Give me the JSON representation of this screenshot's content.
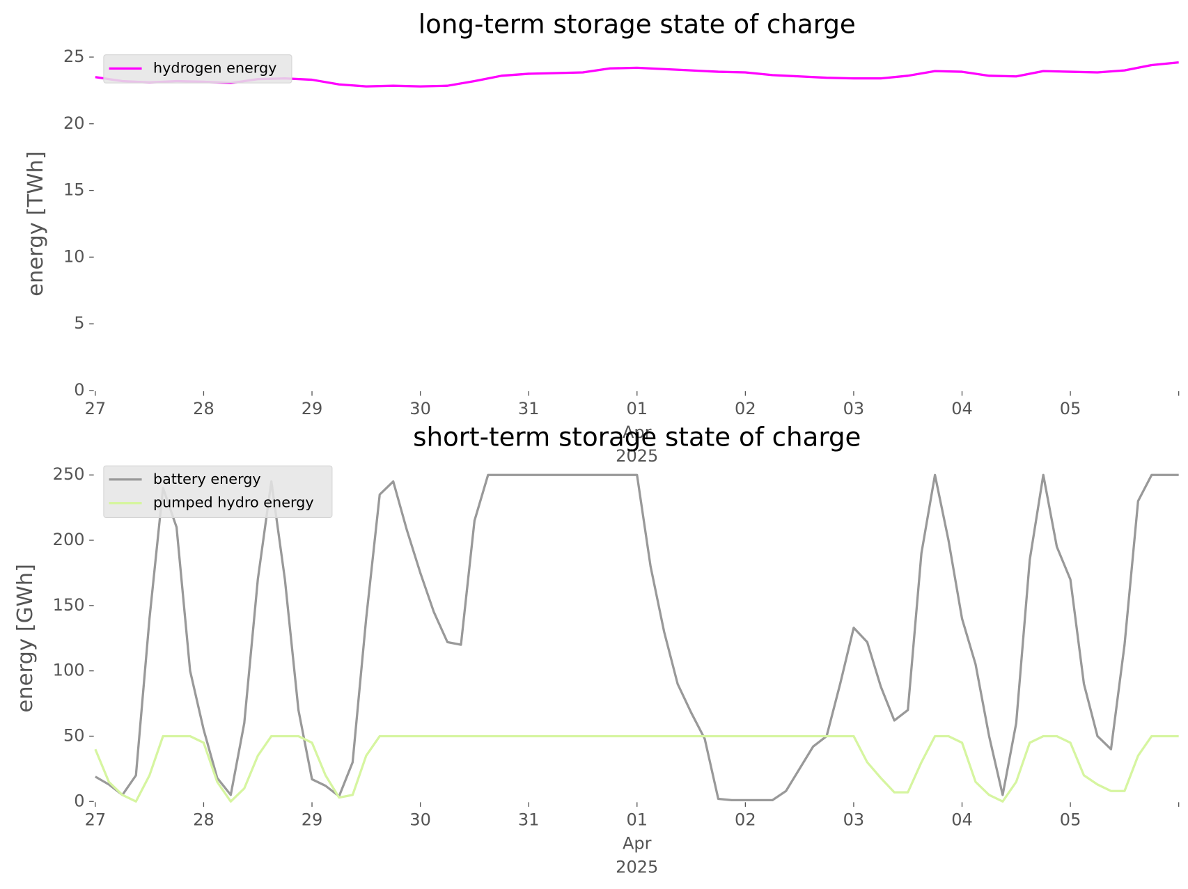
{
  "chart_data": [
    {
      "type": "line",
      "title": "long-term storage state of charge",
      "ylabel": "energy [TWh]",
      "x": [
        "2025-03-27 00:00",
        "2025-03-27 06:00",
        "2025-03-27 12:00",
        "2025-03-27 18:00",
        "2025-03-28 00:00",
        "2025-03-28 06:00",
        "2025-03-28 12:00",
        "2025-03-28 18:00",
        "2025-03-29 00:00",
        "2025-03-29 06:00",
        "2025-03-29 12:00",
        "2025-03-29 18:00",
        "2025-03-30 00:00",
        "2025-03-30 06:00",
        "2025-03-30 12:00",
        "2025-03-30 18:00",
        "2025-03-31 00:00",
        "2025-03-31 06:00",
        "2025-03-31 12:00",
        "2025-03-31 18:00",
        "2025-04-01 00:00",
        "2025-04-01 06:00",
        "2025-04-01 12:00",
        "2025-04-01 18:00",
        "2025-04-02 00:00",
        "2025-04-02 06:00",
        "2025-04-02 12:00",
        "2025-04-02 18:00",
        "2025-04-03 00:00",
        "2025-04-03 06:00",
        "2025-04-03 12:00",
        "2025-04-03 18:00",
        "2025-04-04 00:00",
        "2025-04-04 06:00",
        "2025-04-04 12:00",
        "2025-04-04 18:00",
        "2025-04-05 00:00",
        "2025-04-05 06:00",
        "2025-04-05 12:00",
        "2025-04-05 18:00",
        "2025-04-06 00:00"
      ],
      "series": [
        {
          "name": "hydrogen energy",
          "color": "#ff00ff",
          "values": [
            23.5,
            23.2,
            23.1,
            23.2,
            23.15,
            23.05,
            23.35,
            23.4,
            23.3,
            22.95,
            22.8,
            22.85,
            22.8,
            22.85,
            23.2,
            23.6,
            23.75,
            23.8,
            23.85,
            24.15,
            24.2,
            24.1,
            24.0,
            23.9,
            23.85,
            23.65,
            23.55,
            23.45,
            23.4,
            23.4,
            23.6,
            23.95,
            23.9,
            23.6,
            23.55,
            23.95,
            23.9,
            23.85,
            24.0,
            24.4,
            24.6
          ]
        }
      ],
      "xlim": [
        "2025-03-27 00:00",
        "2025-04-06 00:00"
      ],
      "xticks": [
        {
          "value": "2025-03-27",
          "label": "27"
        },
        {
          "value": "2025-03-28",
          "label": "28"
        },
        {
          "value": "2025-03-29",
          "label": "29"
        },
        {
          "value": "2025-03-30",
          "label": "30"
        },
        {
          "value": "2025-03-31",
          "label": "31"
        },
        {
          "value": "2025-04-01",
          "label": "01\nApr\n2025"
        },
        {
          "value": "2025-04-02",
          "label": "02"
        },
        {
          "value": "2025-04-03",
          "label": "03"
        },
        {
          "value": "2025-04-04",
          "label": "04"
        },
        {
          "value": "2025-04-05",
          "label": "05"
        }
      ],
      "ylim": [
        0,
        25
      ],
      "yticks": [
        0,
        5,
        10,
        15,
        20,
        25
      ],
      "grid": false,
      "legend": "upper left"
    },
    {
      "type": "line",
      "title": "short-term storage state of charge",
      "ylabel": "energy [GWh]",
      "x": [
        "2025-03-27 00:00",
        "2025-03-27 03:00",
        "2025-03-27 06:00",
        "2025-03-27 09:00",
        "2025-03-27 12:00",
        "2025-03-27 15:00",
        "2025-03-27 18:00",
        "2025-03-27 21:00",
        "2025-03-28 00:00",
        "2025-03-28 03:00",
        "2025-03-28 06:00",
        "2025-03-28 09:00",
        "2025-03-28 12:00",
        "2025-03-28 15:00",
        "2025-03-28 18:00",
        "2025-03-28 21:00",
        "2025-03-29 00:00",
        "2025-03-29 03:00",
        "2025-03-29 06:00",
        "2025-03-29 09:00",
        "2025-03-29 12:00",
        "2025-03-29 15:00",
        "2025-03-29 18:00",
        "2025-03-29 21:00",
        "2025-03-30 00:00",
        "2025-03-30 03:00",
        "2025-03-30 06:00",
        "2025-03-30 09:00",
        "2025-03-30 12:00",
        "2025-03-30 15:00",
        "2025-03-30 18:00",
        "2025-03-30 21:00",
        "2025-03-31 00:00",
        "2025-03-31 03:00",
        "2025-03-31 06:00",
        "2025-03-31 09:00",
        "2025-03-31 12:00",
        "2025-03-31 15:00",
        "2025-03-31 18:00",
        "2025-03-31 21:00",
        "2025-04-01 00:00",
        "2025-04-01 03:00",
        "2025-04-01 06:00",
        "2025-04-01 09:00",
        "2025-04-01 12:00",
        "2025-04-01 15:00",
        "2025-04-01 18:00",
        "2025-04-01 21:00",
        "2025-04-02 00:00",
        "2025-04-02 03:00",
        "2025-04-02 06:00",
        "2025-04-02 09:00",
        "2025-04-02 12:00",
        "2025-04-02 15:00",
        "2025-04-02 18:00",
        "2025-04-02 21:00",
        "2025-04-03 00:00",
        "2025-04-03 03:00",
        "2025-04-03 06:00",
        "2025-04-03 09:00",
        "2025-04-03 12:00",
        "2025-04-03 15:00",
        "2025-04-03 18:00",
        "2025-04-03 21:00",
        "2025-04-04 00:00",
        "2025-04-04 03:00",
        "2025-04-04 06:00",
        "2025-04-04 09:00",
        "2025-04-04 12:00",
        "2025-04-04 15:00",
        "2025-04-04 18:00",
        "2025-04-04 21:00",
        "2025-04-05 00:00",
        "2025-04-05 03:00",
        "2025-04-05 06:00",
        "2025-04-05 09:00",
        "2025-04-05 12:00",
        "2025-04-05 15:00",
        "2025-04-05 18:00",
        "2025-04-05 21:00",
        "2025-04-06 00:00"
      ],
      "series": [
        {
          "name": "battery energy",
          "color": "#999999",
          "values": [
            19,
            13,
            5,
            20,
            140,
            240,
            210,
            100,
            55,
            18,
            5,
            60,
            170,
            245,
            170,
            70,
            17,
            12,
            4,
            30,
            140,
            235,
            245,
            208,
            175,
            145,
            122,
            120,
            215,
            250,
            250,
            250,
            250,
            250,
            250,
            250,
            250,
            250,
            250,
            250,
            250,
            180,
            130,
            90,
            68,
            48,
            2,
            1,
            1,
            1,
            1,
            8,
            25,
            42,
            50,
            90,
            133,
            122,
            88,
            62,
            70,
            190,
            250,
            200,
            140,
            105,
            50,
            5,
            60,
            185,
            250,
            195,
            170,
            90,
            50,
            40,
            120,
            230,
            250,
            250,
            250
          ]
        },
        {
          "name": "pumped hydro energy",
          "color": "#d6f5a0",
          "values": [
            40,
            15,
            5,
            0,
            20,
            50,
            50,
            50,
            45,
            15,
            0,
            10,
            35,
            50,
            50,
            50,
            45,
            20,
            3,
            5,
            35,
            50,
            50,
            50,
            50,
            50,
            50,
            50,
            50,
            50,
            50,
            50,
            50,
            50,
            50,
            50,
            50,
            50,
            50,
            50,
            50,
            50,
            50,
            50,
            50,
            50,
            50,
            50,
            50,
            50,
            50,
            50,
            50,
            50,
            50,
            50,
            50,
            30,
            18,
            7,
            7,
            30,
            50,
            50,
            45,
            15,
            5,
            0,
            15,
            45,
            50,
            50,
            45,
            20,
            13,
            8,
            8,
            35,
            50,
            50,
            50
          ]
        }
      ],
      "xlim": [
        "2025-03-27 00:00",
        "2025-04-06 00:00"
      ],
      "xticks": [
        {
          "value": "2025-03-27",
          "label": "27"
        },
        {
          "value": "2025-03-28",
          "label": "28"
        },
        {
          "value": "2025-03-29",
          "label": "29"
        },
        {
          "value": "2025-03-30",
          "label": "30"
        },
        {
          "value": "2025-03-31",
          "label": "31"
        },
        {
          "value": "2025-04-01",
          "label": "01\nApr\n2025"
        },
        {
          "value": "2025-04-02",
          "label": "02"
        },
        {
          "value": "2025-04-03",
          "label": "03"
        },
        {
          "value": "2025-04-04",
          "label": "04"
        },
        {
          "value": "2025-04-05",
          "label": "05"
        }
      ],
      "ylim": [
        0,
        250
      ],
      "yticks": [
        0,
        50,
        100,
        150,
        200,
        250
      ],
      "grid": false,
      "legend": "upper left"
    }
  ]
}
